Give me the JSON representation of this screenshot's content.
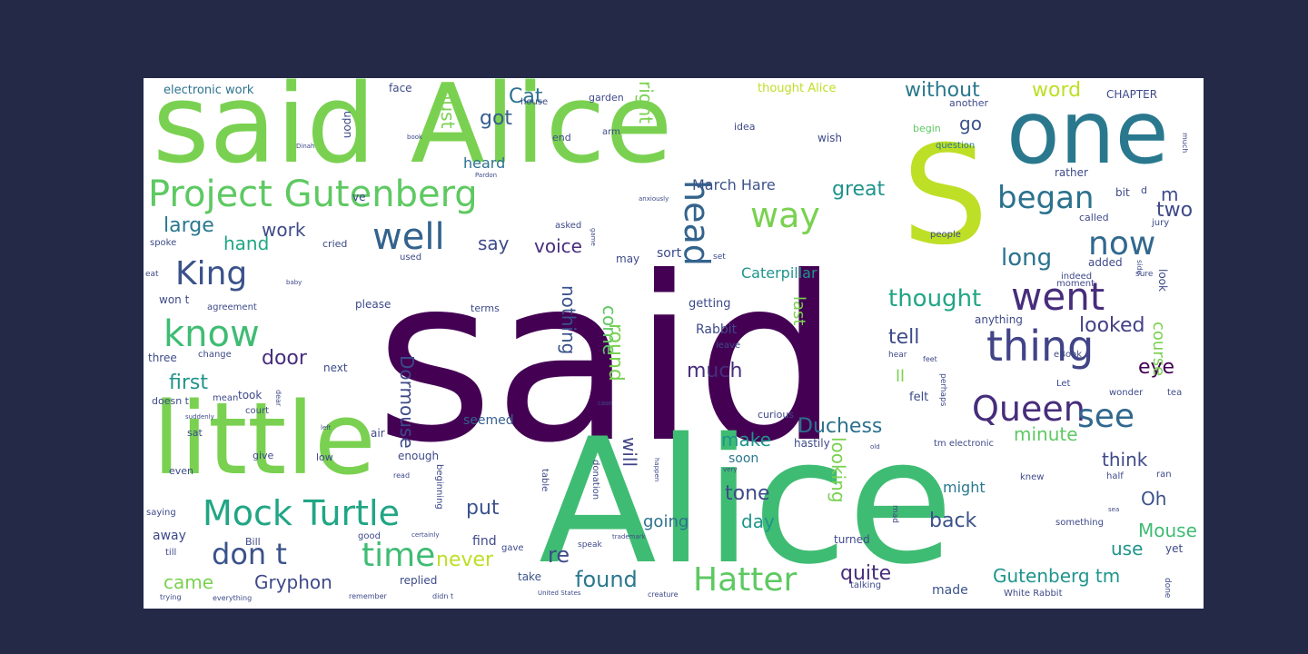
{
  "background_color": "#232946",
  "canvas_color": "#ffffff",
  "words": [
    {
      "text": "said",
      "color": "#440154"
    },
    {
      "text": "Alice",
      "color": "#3fbc73"
    },
    {
      "text": "said Alice",
      "color": "#7ad151"
    },
    {
      "text": "one",
      "color": "#2a788e"
    },
    {
      "text": "S",
      "color": "#bddf26"
    },
    {
      "text": "little",
      "color": "#7ad151"
    },
    {
      "text": "Project Gutenberg",
      "color": "#5ec962"
    },
    {
      "text": "Mock Turtle",
      "color": "#21a685"
    },
    {
      "text": "don t",
      "color": "#3b528b"
    },
    {
      "text": "time",
      "color": "#3fbc73"
    },
    {
      "text": "Hatter",
      "color": "#5ec962"
    },
    {
      "text": "Queen",
      "color": "#472d7b"
    },
    {
      "text": "thing",
      "color": "#414487"
    },
    {
      "text": "went",
      "color": "#472d7b"
    },
    {
      "text": "began",
      "color": "#2c728e"
    },
    {
      "text": "now",
      "color": "#31688e"
    },
    {
      "text": "King",
      "color": "#3b528b"
    },
    {
      "text": "know",
      "color": "#3fbc73"
    },
    {
      "text": "well",
      "color": "#33638d"
    },
    {
      "text": "way",
      "color": "#7ad151"
    },
    {
      "text": "head",
      "color": "#33638d"
    },
    {
      "text": "see",
      "color": "#31688e"
    },
    {
      "text": "without",
      "color": "#2a788e"
    },
    {
      "text": "word",
      "color": "#bddf26"
    },
    {
      "text": "Cat",
      "color": "#2c728e"
    },
    {
      "text": "got",
      "color": "#355f8d"
    },
    {
      "text": "must",
      "color": "#7ad151"
    },
    {
      "text": "right",
      "color": "#7ad151"
    },
    {
      "text": "go",
      "color": "#3b528b"
    },
    {
      "text": "great",
      "color": "#1f948c"
    },
    {
      "text": "m",
      "color": "#3e4a89"
    },
    {
      "text": "two",
      "color": "#3e4a89"
    },
    {
      "text": "long",
      "color": "#2c728e"
    },
    {
      "text": "thought",
      "color": "#21a685"
    },
    {
      "text": "tell",
      "color": "#3e4a89"
    },
    {
      "text": "looked",
      "color": "#424086"
    },
    {
      "text": "eye",
      "color": "#440154"
    },
    {
      "text": "course",
      "color": "#7ad151"
    },
    {
      "text": "Dormouse",
      "color": "#3e4a89"
    },
    {
      "text": "Duchess",
      "color": "#2c728e"
    },
    {
      "text": "minute",
      "color": "#5ec962"
    },
    {
      "text": "think",
      "color": "#3e4a89"
    },
    {
      "text": "Oh",
      "color": "#3b528b"
    },
    {
      "text": "Mouse",
      "color": "#3fbc73"
    },
    {
      "text": "use",
      "color": "#1f948c"
    },
    {
      "text": "back",
      "color": "#3b528b"
    },
    {
      "text": "Gutenberg tm",
      "color": "#1f948c"
    },
    {
      "text": "Gryphon",
      "color": "#3e4a89"
    },
    {
      "text": "came",
      "color": "#7ad151"
    },
    {
      "text": "found",
      "color": "#2a788e"
    },
    {
      "text": "quite",
      "color": "#472d7b"
    },
    {
      "text": "never",
      "color": "#bddf26"
    },
    {
      "text": "put",
      "color": "#3b528b"
    },
    {
      "text": "re",
      "color": "#3e4a89"
    },
    {
      "text": "going",
      "color": "#2c728e"
    },
    {
      "text": "day",
      "color": "#1f948c"
    },
    {
      "text": "tone",
      "color": "#3e4a89"
    },
    {
      "text": "make",
      "color": "#1f948c"
    },
    {
      "text": "will",
      "color": "#414487"
    },
    {
      "text": "looking",
      "color": "#7ad151"
    },
    {
      "text": "much",
      "color": "#472d7b"
    },
    {
      "text": "door",
      "color": "#472d7b"
    },
    {
      "text": "first",
      "color": "#1f948c"
    },
    {
      "text": "hand",
      "color": "#21a685"
    },
    {
      "text": "large",
      "color": "#2a788e"
    },
    {
      "text": "work",
      "color": "#3e4a89"
    },
    {
      "text": "say",
      "color": "#3e4a89"
    },
    {
      "text": "voice",
      "color": "#472d7b"
    },
    {
      "text": "come",
      "color": "#5ec962"
    },
    {
      "text": "round",
      "color": "#7ad151"
    },
    {
      "text": "nothing",
      "color": "#3b528b"
    },
    {
      "text": "Caterpillar",
      "color": "#1f948c"
    },
    {
      "text": "March Hare",
      "color": "#3b528b"
    },
    {
      "text": "heard",
      "color": "#2c728e"
    },
    {
      "text": "last",
      "color": "#7ad151"
    },
    {
      "text": "ll",
      "color": "#7ad151"
    },
    {
      "text": "Rabbit",
      "color": "#3e4a89"
    },
    {
      "text": "seemed",
      "color": "#355f8d"
    },
    {
      "text": "might",
      "color": "#2a788e"
    },
    {
      "text": "away",
      "color": "#3e4a89"
    },
    {
      "text": "find",
      "color": "#3e4a89"
    },
    {
      "text": "take",
      "color": "#3b528b"
    },
    {
      "text": "made",
      "color": "#3b528b"
    },
    {
      "text": "soon",
      "color": "#2a788e"
    },
    {
      "text": "electronic work",
      "color": "#2c728e"
    },
    {
      "text": "thought Alice",
      "color": "#bddf26"
    },
    {
      "text": "CHAPTER",
      "color": "#3e4a89"
    },
    {
      "text": "face",
      "color": "#3e4a89"
    },
    {
      "text": "garden",
      "color": "#3e4a89"
    },
    {
      "text": "upon",
      "color": "#3e4a89"
    },
    {
      "text": "ve",
      "color": "#3e4a89"
    },
    {
      "text": "idea",
      "color": "#3e4a89"
    },
    {
      "text": "wish",
      "color": "#3e4a89"
    },
    {
      "text": "another",
      "color": "#3e4a89"
    },
    {
      "text": "begin",
      "color": "#5ec962"
    },
    {
      "text": "question",
      "color": "#2a788e"
    },
    {
      "text": "rather",
      "color": "#3e4a89"
    },
    {
      "text": "bit",
      "color": "#3e4a89"
    },
    {
      "text": "d",
      "color": "#3e4a89"
    },
    {
      "text": "called",
      "color": "#3e4a89"
    },
    {
      "text": "jury",
      "color": "#3e4a89"
    },
    {
      "text": "asked",
      "color": "#3e4a89"
    },
    {
      "text": "cried",
      "color": "#3e4a89"
    },
    {
      "text": "spoke",
      "color": "#3e4a89"
    },
    {
      "text": "used",
      "color": "#3e4a89"
    },
    {
      "text": "may",
      "color": "#3e4a89"
    },
    {
      "text": "sort",
      "color": "#3e4a89"
    },
    {
      "text": "people",
      "color": "#3e4a89"
    },
    {
      "text": "added",
      "color": "#3e4a89"
    },
    {
      "text": "moment",
      "color": "#3e4a89"
    },
    {
      "text": "sure",
      "color": "#3e4a89"
    },
    {
      "text": "indeed",
      "color": "#3e4a89"
    },
    {
      "text": "look",
      "color": "#3e4a89"
    },
    {
      "text": "won t",
      "color": "#3e4a89"
    },
    {
      "text": "eat",
      "color": "#3e4a89"
    },
    {
      "text": "agreement",
      "color": "#3e4a89"
    },
    {
      "text": "please",
      "color": "#3e4a89"
    },
    {
      "text": "terms",
      "color": "#3e4a89"
    },
    {
      "text": "getting",
      "color": "#3e4a89"
    },
    {
      "text": "anything",
      "color": "#3e4a89"
    },
    {
      "text": "three",
      "color": "#3e4a89"
    },
    {
      "text": "change",
      "color": "#3e4a89"
    },
    {
      "text": "next",
      "color": "#3e4a89"
    },
    {
      "text": "leave",
      "color": "#3e4a89"
    },
    {
      "text": "eBook",
      "color": "#3e4a89"
    },
    {
      "text": "Let",
      "color": "#3e4a89"
    },
    {
      "text": "doesn t",
      "color": "#3e4a89"
    },
    {
      "text": "mean",
      "color": "#3e4a89"
    },
    {
      "text": "took",
      "color": "#3e4a89"
    },
    {
      "text": "felt",
      "color": "#3e4a89"
    },
    {
      "text": "curious",
      "color": "#3e4a89"
    },
    {
      "text": "court",
      "color": "#3e4a89"
    },
    {
      "text": "perhaps",
      "color": "#3e4a89"
    },
    {
      "text": "wonder",
      "color": "#3e4a89"
    },
    {
      "text": "tea",
      "color": "#3e4a89"
    },
    {
      "text": "sat",
      "color": "#3e4a89"
    },
    {
      "text": "air",
      "color": "#3e4a89"
    },
    {
      "text": "tm electronic",
      "color": "#3e4a89"
    },
    {
      "text": "hastily",
      "color": "#3e4a89"
    },
    {
      "text": "low",
      "color": "#3e4a89"
    },
    {
      "text": "enough",
      "color": "#3e4a89"
    },
    {
      "text": "even",
      "color": "#3e4a89"
    },
    {
      "text": "give",
      "color": "#3e4a89"
    },
    {
      "text": "read",
      "color": "#3e4a89"
    },
    {
      "text": "knew",
      "color": "#3e4a89"
    },
    {
      "text": "half",
      "color": "#3e4a89"
    },
    {
      "text": "ran",
      "color": "#3e4a89"
    },
    {
      "text": "beginning",
      "color": "#3e4a89"
    },
    {
      "text": "table",
      "color": "#3e4a89"
    },
    {
      "text": "donation",
      "color": "#3e4a89"
    },
    {
      "text": "saying",
      "color": "#3e4a89"
    },
    {
      "text": "something",
      "color": "#3e4a89"
    },
    {
      "text": "good",
      "color": "#3e4a89"
    },
    {
      "text": "Bill",
      "color": "#3e4a89"
    },
    {
      "text": "till",
      "color": "#3e4a89"
    },
    {
      "text": "gave",
      "color": "#3e4a89"
    },
    {
      "text": "turned",
      "color": "#3e4a89"
    },
    {
      "text": "yet",
      "color": "#3e4a89"
    },
    {
      "text": "replied",
      "color": "#3e4a89"
    },
    {
      "text": "speak",
      "color": "#3e4a89"
    },
    {
      "text": "mad",
      "color": "#3e4a89"
    },
    {
      "text": "talking",
      "color": "#3e4a89"
    },
    {
      "text": "White Rabbit",
      "color": "#3e4a89"
    },
    {
      "text": "done",
      "color": "#3e4a89"
    },
    {
      "text": "trying",
      "color": "#3e4a89"
    },
    {
      "text": "everything",
      "color": "#3e4a89"
    },
    {
      "text": "remember",
      "color": "#3e4a89"
    },
    {
      "text": "didn t",
      "color": "#3e4a89"
    },
    {
      "text": "United States",
      "color": "#3e4a89"
    },
    {
      "text": "creature",
      "color": "#3e4a89"
    },
    {
      "text": "house",
      "color": "#3e4a89"
    },
    {
      "text": "certainly",
      "color": "#3e4a89"
    },
    {
      "text": "end",
      "color": "#3e4a89"
    },
    {
      "text": "arm",
      "color": "#3e4a89"
    },
    {
      "text": "much",
      "color": "#3e4a89"
    },
    {
      "text": "side",
      "color": "#3e4a89"
    },
    {
      "text": "set",
      "color": "#3e4a89"
    },
    {
      "text": "hear",
      "color": "#3e4a89"
    },
    {
      "text": "feet",
      "color": "#3e4a89"
    },
    {
      "text": "dear",
      "color": "#3e4a89"
    },
    {
      "text": "suddenly",
      "color": "#3e4a89"
    },
    {
      "text": "left",
      "color": "#3e4a89"
    },
    {
      "text": "old",
      "color": "#3e4a89"
    },
    {
      "text": "very",
      "color": "#3e4a89"
    },
    {
      "text": "baby",
      "color": "#3e4a89"
    },
    {
      "text": "Dinah",
      "color": "#3e4a89"
    },
    {
      "text": "book",
      "color": "#3e4a89"
    },
    {
      "text": "anxiously",
      "color": "#3e4a89"
    },
    {
      "text": "Pardon",
      "color": "#3e4a89"
    },
    {
      "text": "game",
      "color": "#3e4a89"
    },
    {
      "text": "trademark",
      "color": "#3e4a89"
    },
    {
      "text": "happen",
      "color": "#3e4a89"
    },
    {
      "text": "sea",
      "color": "#3e4a89"
    },
    {
      "text": "case",
      "color": "#3e4a89"
    }
  ]
}
